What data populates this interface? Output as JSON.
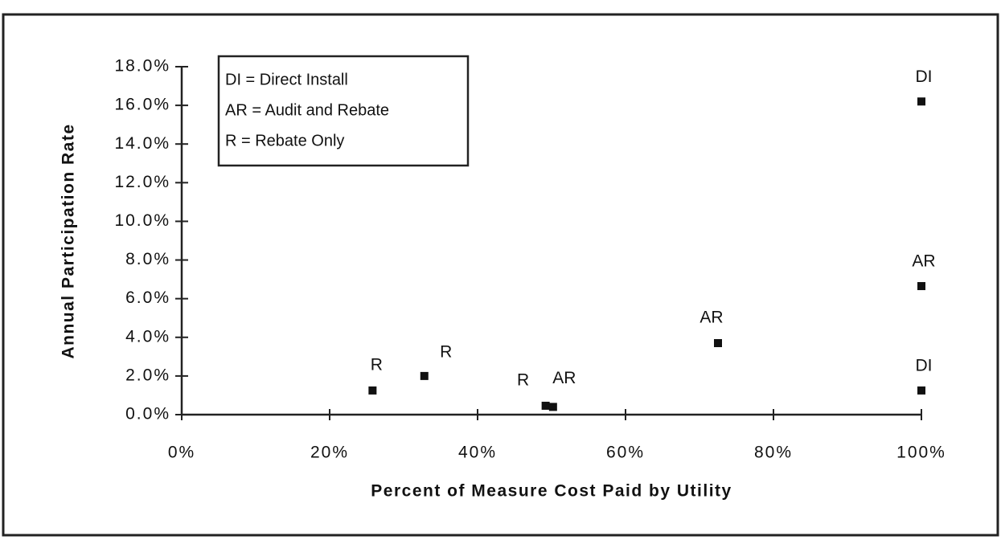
{
  "chart_data": {
    "type": "scatter",
    "x_label": "Percent of Measure Cost Paid by Utility",
    "y_label": "Annual Participation Rate",
    "legend_text": [
      "DI = Direct Install",
      "AR = Audit and Rebate",
      "R = Rebate Only"
    ],
    "x": [
      25.8,
      32.8,
      49.2,
      50.2,
      72.5,
      100,
      100,
      100
    ],
    "values": [
      1.25,
      2.0,
      0.46,
      0.4,
      3.7,
      16.2,
      6.65,
      1.25
    ],
    "point_labels": [
      "R",
      "R",
      "R",
      "AR",
      "AR",
      "DI",
      "AR",
      "DI"
    ],
    "color": "#111111",
    "xlim": [
      0,
      100
    ],
    "xticks": [
      {
        "value": 0,
        "label": "0%"
      },
      {
        "value": 20,
        "label": "20%"
      },
      {
        "value": 40,
        "label": "40%"
      },
      {
        "value": 60,
        "label": "60%"
      },
      {
        "value": 80,
        "label": "80%"
      },
      {
        "value": 100,
        "label": "100%"
      }
    ],
    "ylim": [
      0,
      18
    ],
    "yticks": [
      {
        "value": 0,
        "label": "0.0%"
      },
      {
        "value": 2,
        "label": "2.0%"
      },
      {
        "value": 4,
        "label": "4.0%"
      },
      {
        "value": 6,
        "label": "6.0%"
      },
      {
        "value": 8,
        "label": "8.0%"
      },
      {
        "value": 10,
        "label": "10.0%"
      },
      {
        "value": 12,
        "label": "12.0%"
      },
      {
        "value": 14,
        "label": "14.0%"
      },
      {
        "value": 16,
        "label": "16.0%"
      },
      {
        "value": 18,
        "label": "18.0%"
      }
    ]
  }
}
